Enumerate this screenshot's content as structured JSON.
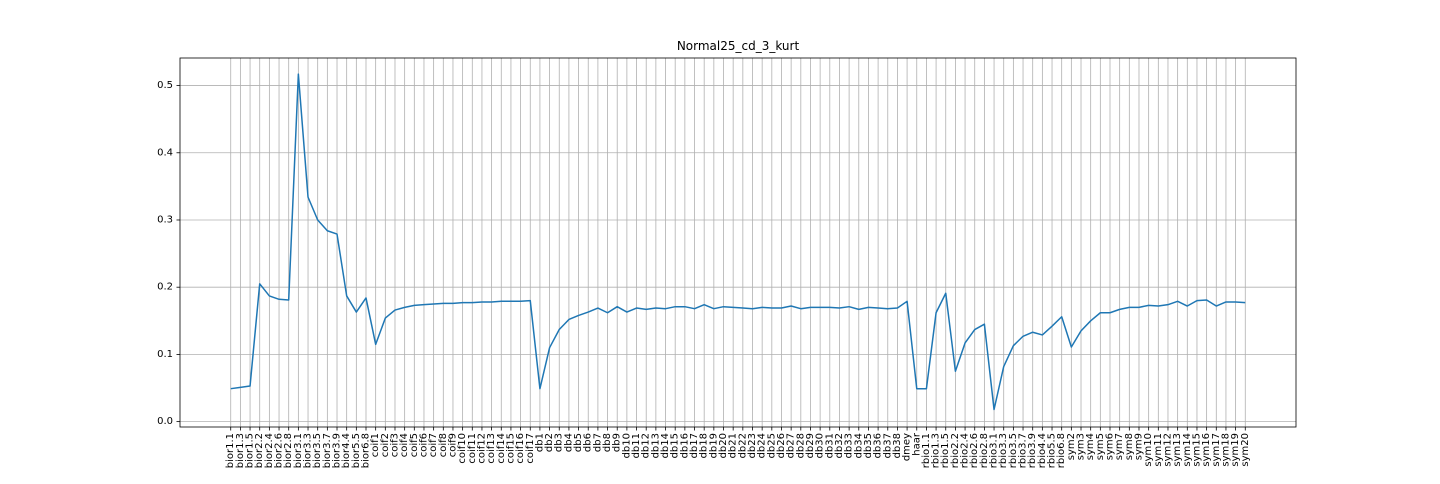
{
  "chart_data": {
    "type": "line",
    "title": "Normal25_cd_3_kurt",
    "xlabel": "",
    "ylabel": "",
    "ylim": [
      -0.008,
      0.541
    ],
    "yticks": [
      0.0,
      0.1,
      0.2,
      0.3,
      0.4,
      0.5
    ],
    "ytick_labels": [
      "0.0",
      "0.1",
      "0.2",
      "0.3",
      "0.4",
      "0.5"
    ],
    "grid": true,
    "line_color": "#1f77b4",
    "categories": [
      "bior1.1",
      "bior1.3",
      "bior1.5",
      "bior2.2",
      "bior2.4",
      "bior2.6",
      "bior2.8",
      "bior3.1",
      "bior3.3",
      "bior3.5",
      "bior3.7",
      "bior3.9",
      "bior4.4",
      "bior5.5",
      "bior6.8",
      "coif1",
      "coif2",
      "coif3",
      "coif4",
      "coif5",
      "coif6",
      "coif7",
      "coif8",
      "coif9",
      "coif10",
      "coif11",
      "coif12",
      "coif13",
      "coif14",
      "coif15",
      "coif16",
      "coif17",
      "db1",
      "db2",
      "db3",
      "db4",
      "db5",
      "db6",
      "db7",
      "db8",
      "db9",
      "db10",
      "db11",
      "db12",
      "db13",
      "db14",
      "db15",
      "db16",
      "db17",
      "db18",
      "db19",
      "db20",
      "db21",
      "db22",
      "db23",
      "db24",
      "db25",
      "db26",
      "db27",
      "db28",
      "db29",
      "db30",
      "db31",
      "db32",
      "db33",
      "db34",
      "db35",
      "db36",
      "db37",
      "db38",
      "dmey",
      "haar",
      "rbio1.1",
      "rbio1.3",
      "rbio1.5",
      "rbio2.2",
      "rbio2.4",
      "rbio2.6",
      "rbio2.8",
      "rbio3.1",
      "rbio3.3",
      "rbio3.5",
      "rbio3.7",
      "rbio3.9",
      "rbio4.4",
      "rbio5.5",
      "rbio6.8",
      "sym2",
      "sym3",
      "sym4",
      "sym5",
      "sym6",
      "sym7",
      "sym8",
      "sym9",
      "sym10",
      "sym11",
      "sym12",
      "sym13",
      "sym14",
      "sym15",
      "sym16",
      "sym17",
      "sym18",
      "sym19",
      "sym20"
    ],
    "series": [
      {
        "values": [
          0.049,
          0.051,
          0.053,
          0.205,
          0.187,
          0.182,
          0.181,
          0.517,
          0.334,
          0.3,
          0.284,
          0.279,
          0.187,
          0.163,
          0.184,
          0.115,
          0.154,
          0.166,
          0.17,
          0.173,
          0.174,
          0.175,
          0.176,
          0.176,
          0.177,
          0.177,
          0.178,
          0.178,
          0.179,
          0.179,
          0.179,
          0.18,
          0.049,
          0.11,
          0.137,
          0.152,
          0.158,
          0.163,
          0.169,
          0.162,
          0.171,
          0.163,
          0.169,
          0.167,
          0.169,
          0.168,
          0.171,
          0.171,
          0.168,
          0.174,
          0.168,
          0.171,
          0.17,
          0.169,
          0.168,
          0.17,
          0.169,
          0.169,
          0.172,
          0.168,
          0.17,
          0.17,
          0.17,
          0.169,
          0.171,
          0.167,
          0.17,
          0.169,
          0.168,
          0.169,
          0.179,
          0.049,
          0.049,
          0.162,
          0.191,
          0.075,
          0.117,
          0.137,
          0.145,
          0.018,
          0.082,
          0.113,
          0.127,
          0.133,
          0.129,
          0.142,
          0.156,
          0.111,
          0.135,
          0.15,
          0.162,
          0.162,
          0.167,
          0.17,
          0.17,
          0.173,
          0.172,
          0.174,
          0.179,
          0.172,
          0.18,
          0.181,
          0.172,
          0.178,
          0.178,
          0.177
        ]
      }
    ]
  }
}
